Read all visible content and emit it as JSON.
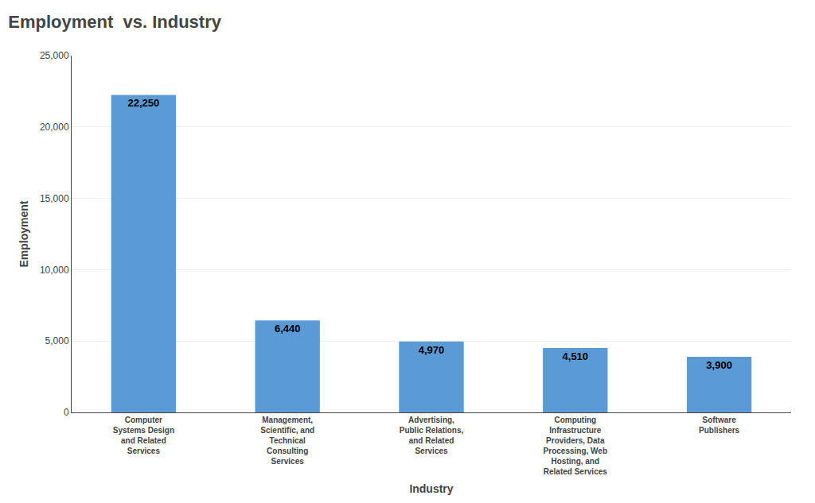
{
  "chart_data": {
    "type": "bar",
    "title": "Employment  vs. Industry",
    "x_label": "Industry",
    "y_label": "Employment",
    "categories": [
      "Computer\nSystems Design\nand Related\nServices",
      "Management,\nScientific, and\nTechnical\nConsulting\nServices",
      "Advertising,\nPublic Relations,\nand Related\nServices",
      "Computing\nInfrastructure\nProviders, Data\nProcessing, Web\nHosting, and\nRelated Services",
      "Software\nPublishers"
    ],
    "values": [
      22250,
      6440,
      4970,
      4510,
      3900
    ],
    "value_labels": [
      "22,250",
      "6,440",
      "4,970",
      "4,510",
      "3,900"
    ],
    "data_labels": true,
    "color": "#5b9bd5",
    "ylim": [
      0,
      25000
    ],
    "yticks": [
      0,
      {
        "value": 5000,
        "label": "5,000"
      },
      {
        "value": 10000,
        "label": "10,000"
      },
      {
        "value": 15000,
        "label": "15,000"
      },
      {
        "value": 20000,
        "label": "20,000"
      },
      {
        "value": 25000,
        "label": "25,000"
      }
    ],
    "grid": true
  }
}
